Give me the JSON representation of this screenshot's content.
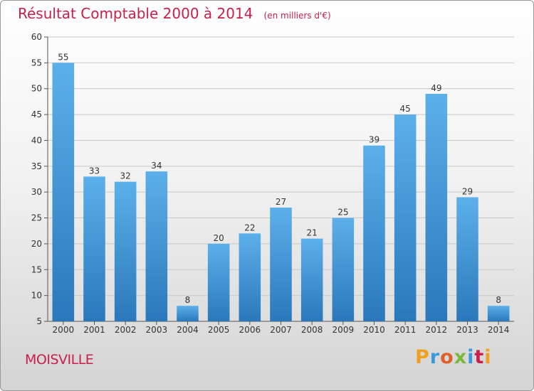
{
  "title": "Résultat Comptable 2000 à 2014",
  "unit": "(en milliers d'€)",
  "commune": "MOISVILLE",
  "brand": "Proxiti",
  "brand_letters": [
    "P",
    "r",
    "o",
    "x",
    "i",
    "t",
    "i"
  ],
  "colors": {
    "title": "#c8204a",
    "bar_light": "#5cb0ea",
    "bar_dark": "#2a78bb",
    "grid": "#c8c8c8"
  },
  "chart_data": {
    "type": "bar",
    "title": "Résultat Comptable 2000 à 2014",
    "subtitle": "(en milliers d'€)",
    "xlabel": "",
    "ylabel": "",
    "categories": [
      "2000",
      "2001",
      "2002",
      "2003",
      "2004",
      "2005",
      "2006",
      "2007",
      "2008",
      "2009",
      "2010",
      "2011",
      "2012",
      "2013",
      "2014"
    ],
    "values": [
      55,
      33,
      32,
      34,
      8,
      20,
      22,
      27,
      21,
      25,
      39,
      45,
      49,
      29,
      8
    ],
    "ylim": [
      5,
      60
    ],
    "yticks": [
      5,
      10,
      15,
      20,
      25,
      30,
      35,
      40,
      45,
      50,
      55,
      60
    ],
    "grid": true,
    "data_labels": true
  }
}
